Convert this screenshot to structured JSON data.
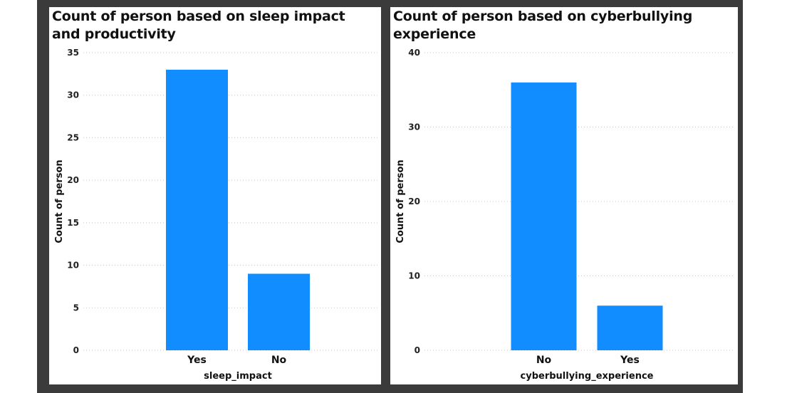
{
  "colors": {
    "bar": "#118DFF",
    "frame": "#3b3b3b",
    "panel": "#ffffff"
  },
  "chart_data": [
    {
      "type": "bar",
      "title": "Count of person based on sleep impact and productivity",
      "categories": [
        "Yes",
        "No"
      ],
      "values": [
        33,
        9
      ],
      "xlabel": "sleep_impact",
      "ylabel": "Count of person",
      "ylim": [
        0,
        35
      ],
      "yticks": [
        0,
        5,
        10,
        15,
        20,
        25,
        30,
        35
      ],
      "grid": true
    },
    {
      "type": "bar",
      "title": "Count of person based on cyberbullying experience",
      "categories": [
        "No",
        "Yes"
      ],
      "values": [
        36,
        6
      ],
      "xlabel": "cyberbullying_experience",
      "ylabel": "Count of person",
      "ylim": [
        0,
        40
      ],
      "yticks": [
        0,
        10,
        20,
        30,
        40
      ],
      "grid": true
    }
  ]
}
